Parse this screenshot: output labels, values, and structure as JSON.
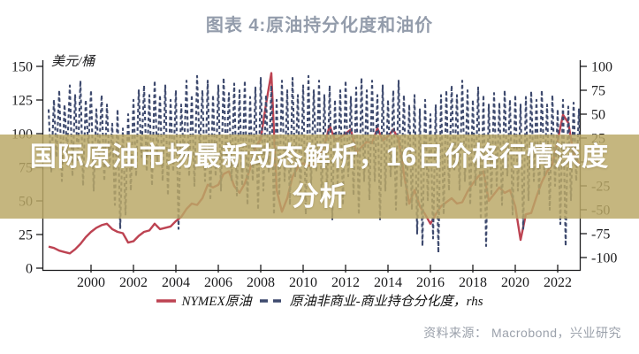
{
  "banner": {
    "lines": [
      "国际原油市场最新动态解析，16日价格行情深度",
      "分析"
    ]
  },
  "chart": {
    "title": "图表 4:原油持分化度和油价",
    "source": "资料来源：  Macrobond，兴业研究",
    "legend": [
      {
        "label": "NYMEX原油",
        "style": "solid"
      },
      {
        "label": "原油非商业-商业持仓分化度，rhs",
        "style": "dashed"
      }
    ],
    "colors": {
      "nymex": "#bd4352",
      "divergence": "#3e4a6e",
      "axis": "#1c1c1e",
      "title": "#939cab",
      "banner_bg": "rgba(186,168,102,0.84)",
      "banner_text": "#ffffff",
      "source": "#9ba1ab"
    }
  },
  "chart_data": {
    "type": "line",
    "title": "图表 4:原油持分化度和油价",
    "ylabel_left": "美元/桶",
    "legend_position": "bottom",
    "grid": false,
    "axes": {
      "x": {
        "min": 1997.8,
        "max": 2023.4,
        "ticks": [
          2000,
          2002,
          2004,
          2006,
          2008,
          2010,
          2012,
          2014,
          2016,
          2018,
          2020,
          2022
        ]
      },
      "y_left": {
        "min": 0,
        "max": 150,
        "ticks": [
          0,
          25,
          50,
          75,
          100,
          125,
          150
        ],
        "label": "美元/桶"
      },
      "y_right": {
        "min": -100,
        "max": 100,
        "ticks": [
          -100,
          -75,
          -50,
          -25,
          0,
          25,
          50,
          75,
          100
        ],
        "label": "rhs"
      }
    },
    "series": [
      {
        "name": "NYMEX原油",
        "axis": "left",
        "line": "solid",
        "color": "#bd4352",
        "x_start": 1998.0,
        "x_step": 0.25,
        "values": [
          16,
          15,
          13,
          12,
          11,
          14,
          18,
          23,
          27,
          30,
          32,
          33,
          29,
          27,
          26,
          19,
          20,
          24,
          27,
          28,
          33,
          29,
          30,
          31,
          35,
          38,
          44,
          48,
          47,
          52,
          62,
          60,
          62,
          70,
          72,
          61,
          56,
          63,
          74,
          90,
          96,
          122,
          145,
          58,
          42,
          52,
          68,
          75,
          78,
          76,
          77,
          84,
          91,
          106,
          95,
          97,
          100,
          103,
          86,
          90,
          94,
          93,
          104,
          95,
          98,
          103,
          96,
          70,
          48,
          58,
          46,
          40,
          33,
          40,
          46,
          49,
          52,
          48,
          49,
          57,
          63,
          68,
          72,
          50,
          55,
          60,
          56,
          58,
          46,
          21,
          40,
          41,
          53,
          64,
          72,
          77,
          95,
          114,
          108,
          85,
          78,
          75
        ]
      },
      {
        "name": "原油非商业-商业持仓分化度，rhs",
        "axis": "right",
        "line": "dashed",
        "color": "#3e4a6e",
        "x_start": 1998.0,
        "x_step": 0.125,
        "values": [
          55,
          -10,
          65,
          5,
          75,
          -20,
          60,
          10,
          80,
          -15,
          70,
          0,
          85,
          -25,
          65,
          15,
          75,
          -30,
          55,
          5,
          70,
          -20,
          60,
          -5,
          40,
          -45,
          55,
          -70,
          35,
          -55,
          50,
          -30,
          65,
          -15,
          75,
          5,
          80,
          -10,
          70,
          -25,
          85,
          0,
          70,
          -20,
          80,
          -35,
          65,
          -10,
          75,
          -70,
          60,
          5,
          85,
          -15,
          70,
          -25,
          90,
          10,
          75,
          -20,
          85,
          -40,
          70,
          -15,
          80,
          -30,
          88,
          0,
          72,
          -20,
          82,
          -35,
          75,
          -25,
          85,
          -45,
          68,
          -20,
          78,
          -50,
          88,
          -30,
          70,
          -10,
          80,
          -55,
          65,
          -35,
          85,
          -20,
          75,
          -45,
          88,
          -15,
          70,
          -35,
          80,
          -55,
          90,
          -25,
          75,
          -10,
          85,
          -40,
          70,
          -30,
          80,
          -60,
          65,
          -25,
          75,
          -45,
          85,
          -15,
          68,
          -35,
          78,
          -55,
          88,
          -20,
          75,
          -40,
          85,
          -20,
          70,
          -60,
          80,
          -30,
          65,
          -15,
          75,
          -50,
          85,
          -25,
          70,
          -45,
          60,
          -50,
          70,
          -75,
          55,
          -88,
          65,
          -40,
          50,
          -80,
          60,
          -95,
          70,
          -55,
          75,
          -30,
          80,
          -10,
          70,
          -30,
          85,
          -20,
          75,
          -45,
          65,
          -25,
          78,
          -60,
          70,
          -88,
          60,
          -35,
          72,
          -25,
          62,
          -45,
          75,
          -15,
          65,
          -55,
          70,
          -30,
          60,
          -70,
          68,
          -40,
          74,
          -20,
          65,
          -35,
          75,
          -15,
          60,
          -50,
          70,
          -25,
          55,
          -65,
          65,
          -88,
          58,
          -40,
          62,
          -20,
          55,
          -30,
          65,
          -15,
          50,
          -40
        ]
      }
    ]
  }
}
